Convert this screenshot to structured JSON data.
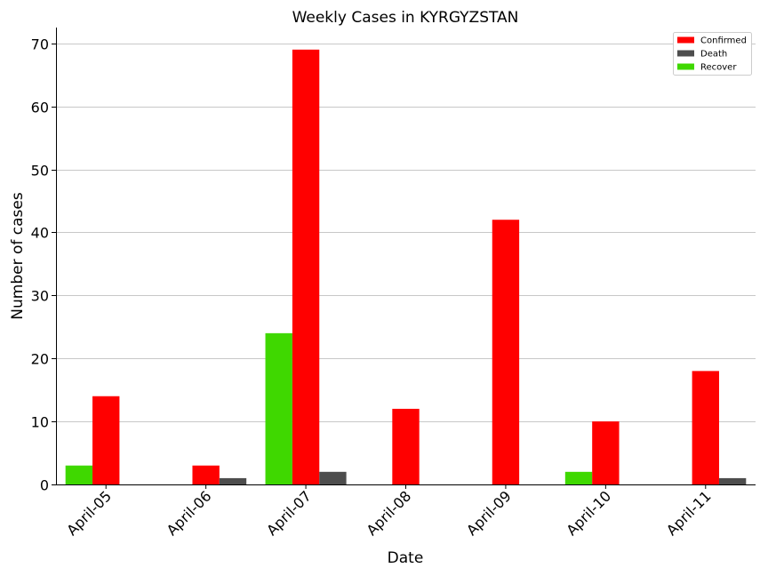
{
  "chart_data": {
    "type": "bar",
    "title": "Weekly Cases in KYRGYZSTAN",
    "xlabel": "Date",
    "ylabel": "Number of cases",
    "categories": [
      "April-05",
      "April-06",
      "April-07",
      "April-08",
      "April-09",
      "April-10",
      "April-11"
    ],
    "series": [
      {
        "name": "Recover",
        "color": "#3fd800",
        "values": [
          3,
          0,
          24,
          0,
          0,
          2,
          0
        ]
      },
      {
        "name": "Confirmed",
        "color": "#ff0000",
        "values": [
          14,
          3,
          69,
          12,
          42,
          10,
          18
        ]
      },
      {
        "name": "Death",
        "color": "#4d4d4d",
        "values": [
          0,
          1,
          2,
          0,
          0,
          0,
          1
        ]
      }
    ],
    "legend_order": [
      "Confirmed",
      "Death",
      "Recover"
    ],
    "legend_position": "top-right",
    "ylim": [
      0,
      72.5
    ],
    "yticks": [
      0,
      10,
      20,
      30,
      40,
      50,
      60,
      70
    ],
    "grid": "horizontal"
  }
}
